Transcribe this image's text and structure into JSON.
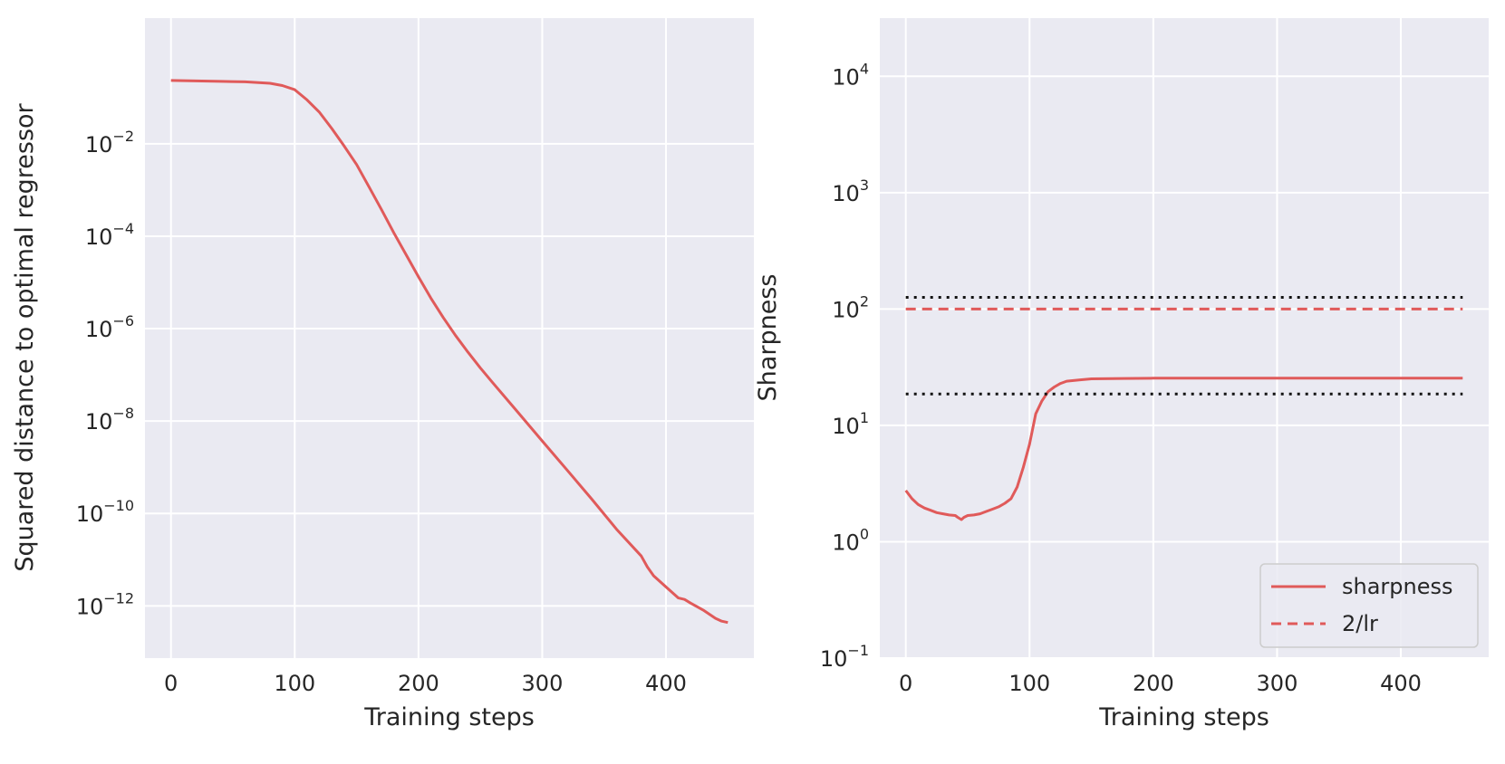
{
  "chart_data": [
    {
      "type": "line",
      "title": "",
      "xlabel": "Training steps",
      "ylabel": "Squared distance to optimal regressor",
      "yscale": "log",
      "xlim": [
        -21,
        471
      ],
      "ylim_exp": [
        -13.13,
        0.72
      ],
      "x_ticks": [
        0,
        100,
        200,
        300,
        400
      ],
      "x_tick_labels": [
        "0",
        "100",
        "200",
        "300",
        "400"
      ],
      "y_ticks_exp": [
        -12,
        -10,
        -8,
        -6,
        -4,
        -2
      ],
      "y_tick_labels": [
        {
          "base": "10",
          "exp": "−12"
        },
        {
          "base": "10",
          "exp": "−10"
        },
        {
          "base": "10",
          "exp": "−8"
        },
        {
          "base": "10",
          "exp": "−6"
        },
        {
          "base": "10",
          "exp": "−4"
        },
        {
          "base": "10",
          "exp": "−2"
        }
      ],
      "grid": true,
      "series": [
        {
          "color": "#e05a5a",
          "style": "solid",
          "x": [
            0,
            20,
            40,
            60,
            80,
            90,
            100,
            110,
            120,
            130,
            140,
            150,
            160,
            170,
            180,
            190,
            200,
            210,
            220,
            230,
            240,
            250,
            260,
            280,
            300,
            320,
            340,
            360,
            380,
            385,
            390,
            400,
            410,
            415,
            420,
            430,
            440,
            445,
            450
          ],
          "y_exp": [
            -0.63,
            -0.64,
            -0.65,
            -0.66,
            -0.69,
            -0.74,
            -0.83,
            -1.05,
            -1.32,
            -1.67,
            -2.05,
            -2.45,
            -2.93,
            -3.42,
            -3.92,
            -4.4,
            -4.88,
            -5.34,
            -5.76,
            -6.15,
            -6.51,
            -6.85,
            -7.17,
            -7.8,
            -8.43,
            -9.06,
            -9.69,
            -10.34,
            -10.92,
            -11.16,
            -11.35,
            -11.59,
            -11.83,
            -11.86,
            -11.94,
            -12.09,
            -12.27,
            -12.33,
            -12.36
          ]
        }
      ]
    },
    {
      "type": "line",
      "title": "",
      "xlabel": "Training steps",
      "ylabel": "Sharpness",
      "yscale": "log",
      "xlim": [
        -21,
        471
      ],
      "ylim_exp": [
        -1.0,
        4.5
      ],
      "x_ticks": [
        0,
        100,
        200,
        300,
        400
      ],
      "x_tick_labels": [
        "0",
        "100",
        "200",
        "300",
        "400"
      ],
      "y_ticks_exp": [
        -1,
        0,
        1,
        2,
        3,
        4
      ],
      "y_tick_labels": [
        {
          "base": "10",
          "exp": "−1"
        },
        {
          "base": "10",
          "exp": "0"
        },
        {
          "base": "10",
          "exp": "1"
        },
        {
          "base": "10",
          "exp": "2"
        },
        {
          "base": "10",
          "exp": "3"
        },
        {
          "base": "10",
          "exp": "4"
        }
      ],
      "grid": true,
      "legend_position": "bottom-right",
      "series": [
        {
          "name": "sharpness",
          "color": "#e05a5a",
          "style": "solid",
          "x": [
            0,
            5,
            10,
            15,
            20,
            25,
            30,
            35,
            40,
            42,
            45,
            47,
            50,
            55,
            60,
            65,
            70,
            75,
            80,
            85,
            90,
            95,
            100,
            105,
            110,
            115,
            120,
            125,
            130,
            140,
            150,
            175,
            200,
            300,
            400,
            450
          ],
          "y_exp": [
            0.44,
            0.37,
            0.32,
            0.29,
            0.27,
            0.25,
            0.24,
            0.23,
            0.225,
            0.21,
            0.19,
            0.21,
            0.225,
            0.23,
            0.24,
            0.26,
            0.28,
            0.3,
            0.33,
            0.37,
            0.47,
            0.64,
            0.84,
            1.1,
            1.21,
            1.29,
            1.33,
            1.36,
            1.38,
            1.39,
            1.4,
            1.403,
            1.405,
            1.405,
            1.405,
            1.405
          ]
        },
        {
          "name": "2/lr",
          "color": "#e05a5a",
          "style": "dashed",
          "x": [
            0,
            450
          ],
          "y_exp": [
            2.0,
            2.0
          ]
        },
        {
          "color": "#111111",
          "style": "dotted",
          "x": [
            0,
            450
          ],
          "y_exp": [
            2.1,
            2.1
          ]
        },
        {
          "color": "#111111",
          "style": "dotted",
          "x": [
            0,
            450
          ],
          "y_exp": [
            1.27,
            1.27
          ]
        }
      ]
    }
  ]
}
